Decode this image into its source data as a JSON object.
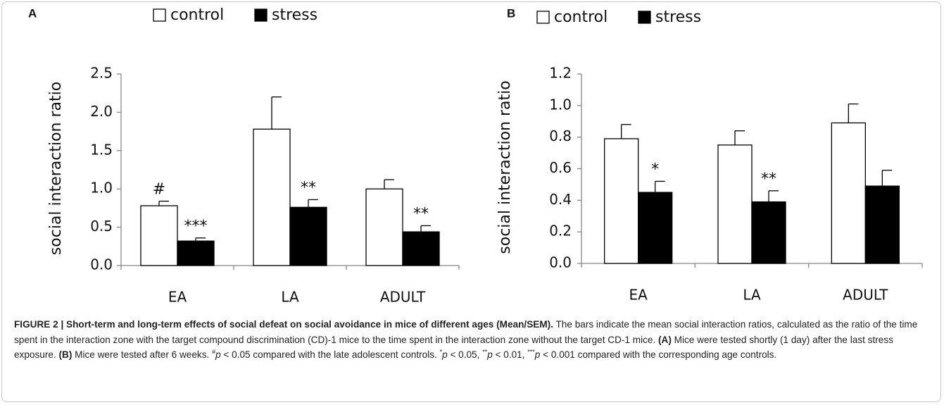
{
  "chart_data": [
    {
      "type": "bar",
      "panel": "A",
      "ylabel": "social interaction ratio",
      "categories": [
        "EA",
        "LA",
        "ADULT"
      ],
      "series": [
        {
          "name": "control",
          "color": "#ffffff",
          "values": [
            0.78,
            1.78,
            1.0
          ],
          "errors": [
            0.06,
            0.42,
            0.12
          ],
          "annotations": [
            "#",
            null,
            null
          ]
        },
        {
          "name": "stress",
          "color": "#000000",
          "values": [
            0.32,
            0.76,
            0.44
          ],
          "errors": [
            0.04,
            0.1,
            0.08
          ],
          "annotations": [
            "***",
            "**",
            "**"
          ]
        }
      ],
      "ylim": [
        0,
        2.5
      ],
      "yticks": [
        {
          "value": 0,
          "label": "0.0"
        },
        {
          "value": 0.5,
          "label": "0.5"
        },
        {
          "value": 1,
          "label": "1.0"
        },
        {
          "value": 1.5,
          "label": "1.5"
        },
        {
          "value": 2,
          "label": "2.0"
        },
        {
          "value": 2.5,
          "label": "2.5"
        }
      ],
      "grid": false
    },
    {
      "type": "bar",
      "panel": "B",
      "ylabel": "social interaction ratio",
      "categories": [
        "EA",
        "LA",
        "ADULT"
      ],
      "series": [
        {
          "name": "control",
          "color": "#ffffff",
          "values": [
            0.79,
            0.75,
            0.89
          ],
          "errors": [
            0.09,
            0.09,
            0.12
          ],
          "annotations": [
            null,
            null,
            null
          ]
        },
        {
          "name": "stress",
          "color": "#000000",
          "values": [
            0.45,
            0.39,
            0.49
          ],
          "errors": [
            0.07,
            0.07,
            0.1
          ],
          "annotations": [
            "*",
            "**",
            null
          ]
        }
      ],
      "ylim": [
        0,
        1.2
      ],
      "yticks": [
        {
          "value": 0,
          "label": "0.0"
        },
        {
          "value": 0.2,
          "label": "0.2"
        },
        {
          "value": 0.4,
          "label": "0.4"
        },
        {
          "value": 0.6,
          "label": "0.6"
        },
        {
          "value": 0.8,
          "label": "0.8"
        },
        {
          "value": 1,
          "label": "1.0"
        },
        {
          "value": 1.2,
          "label": "1.2"
        }
      ],
      "grid": false
    }
  ],
  "caption": [
    {
      "text": "FIGURE 2 | Short-term and long-term effects of social defeat on social avoidance in mice of different ages (Mean/SEM).",
      "style": "bold"
    },
    {
      "text": " The bars indicate the mean social interaction ratios, calculated as the ratio of the time spent in the interaction zone with the target compound discrimination (CD)-1 mice to the time spent in the interaction zone without the target CD-1 mice. ",
      "style": "normal"
    },
    {
      "text": "(A)",
      "style": "bold"
    },
    {
      "text": " Mice were tested shortly (1 day) after the last stress exposure. ",
      "style": "normal"
    },
    {
      "text": "(B)",
      "style": "bold"
    },
    {
      "text": " Mice were tested after 6 weeks. ",
      "style": "normal"
    },
    {
      "text": "#",
      "style": "sup"
    },
    {
      "text": "p",
      "style": "italic"
    },
    {
      "text": " < 0.05 compared with the late adolescent controls. ",
      "style": "normal"
    },
    {
      "text": "*",
      "style": "sup"
    },
    {
      "text": "p",
      "style": "italic"
    },
    {
      "text": " < 0.05, ",
      "style": "normal"
    },
    {
      "text": "**",
      "style": "sup"
    },
    {
      "text": "p",
      "style": "italic"
    },
    {
      "text": " < 0.01, ",
      "style": "normal"
    },
    {
      "text": "***",
      "style": "sup"
    },
    {
      "text": "p",
      "style": "italic"
    },
    {
      "text": " < 0.001 compared with the corresponding age controls.",
      "style": "normal"
    }
  ]
}
